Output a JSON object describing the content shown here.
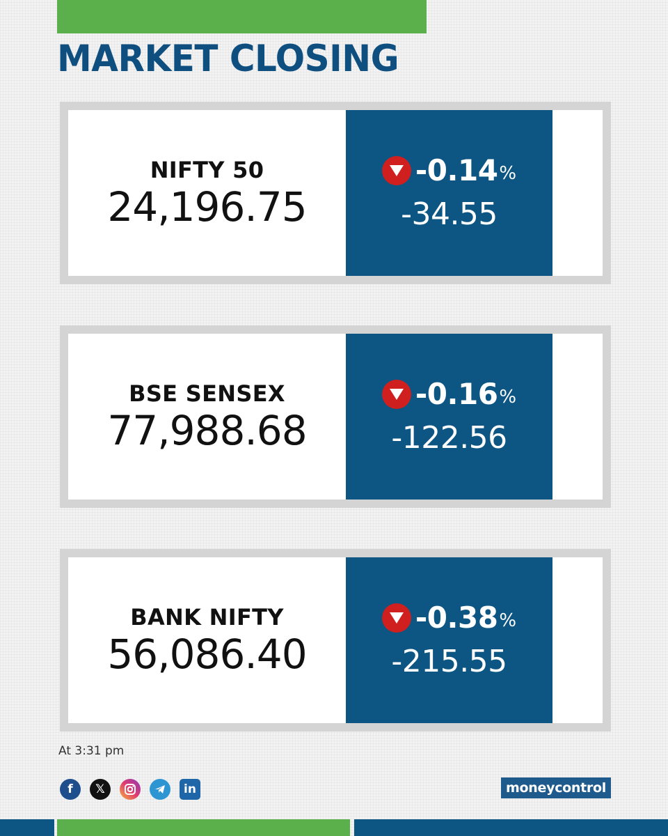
{
  "header": {
    "title": "MARKET CLOSING"
  },
  "cards": [
    {
      "name": "NIFTY 50",
      "value": "24,196.75",
      "pct": "-0.14",
      "pct_sign": "%",
      "change": "-34.55",
      "direction": "down"
    },
    {
      "name": "BSE SENSEX",
      "value": "77,988.68",
      "pct": "-0.16",
      "pct_sign": "%",
      "change": "-122.56",
      "direction": "down"
    },
    {
      "name": "BANK NIFTY",
      "value": "56,086.40",
      "pct": "-0.38",
      "pct_sign": "%",
      "change": "-215.55",
      "direction": "down"
    }
  ],
  "footer": {
    "timestamp": "At 3:31 pm",
    "social_icons": [
      "facebook-icon",
      "x-icon",
      "instagram-icon",
      "telegram-icon",
      "linkedin-icon"
    ],
    "logo": {
      "part1": "money",
      "part2": "control"
    }
  },
  "colors": {
    "accent_green": "#5bb04b",
    "brand_blue": "#0d5582",
    "title_blue": "#0f4f80",
    "down_red": "#cf1f1f"
  }
}
